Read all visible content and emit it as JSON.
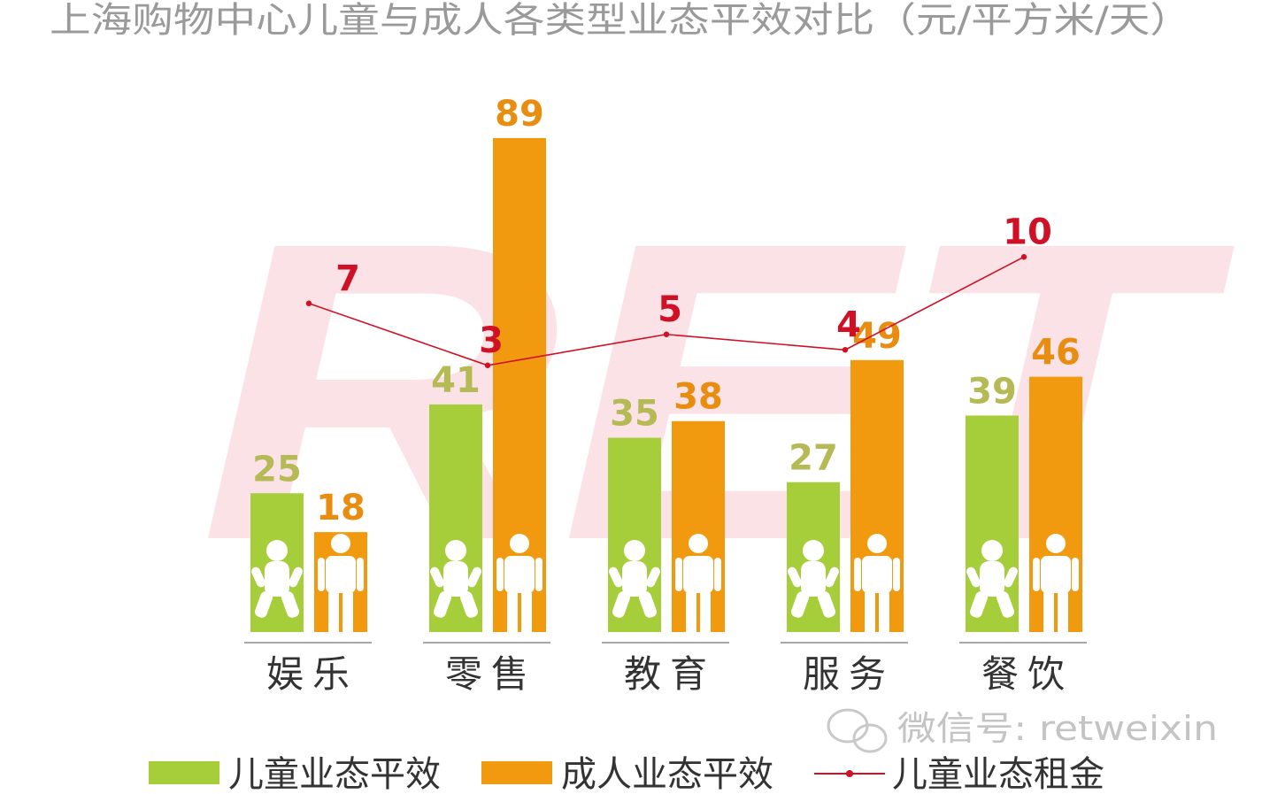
{
  "title": "上海购物中心儿童与成人各类型业态平效对比（元/平方米/天）",
  "watermark": {
    "logo_text": "RET",
    "wechat_text": "微信号: retweixin"
  },
  "colors": {
    "children": "#a6cd3a",
    "adult": "#f29a0f",
    "rent": "#cf1025",
    "child_label": "#b6ba55",
    "adult_label": "#e98d10",
    "watermark": "#f9dde0",
    "category": "#333333"
  },
  "chart_data": {
    "type": "bar",
    "title": "上海购物中心儿童与成人各类型业态平效对比（元/平方米/天）",
    "categories": [
      "娱乐",
      "零售",
      "教育",
      "服务",
      "餐饮"
    ],
    "series": [
      {
        "name": "儿童业态平效",
        "type": "bar",
        "color": "#a6cd3a",
        "icon": "child-icon",
        "values": [
          25,
          41,
          35,
          27,
          39
        ]
      },
      {
        "name": "成人业态平效",
        "type": "bar",
        "color": "#f29a0f",
        "icon": "adult-icon",
        "values": [
          18,
          89,
          38,
          49,
          46
        ]
      },
      {
        "name": "儿童业态租金",
        "type": "line",
        "color": "#cf1025",
        "values": [
          7,
          3,
          5,
          4,
          10
        ]
      }
    ],
    "legend_position": "bottom",
    "grid": false
  }
}
